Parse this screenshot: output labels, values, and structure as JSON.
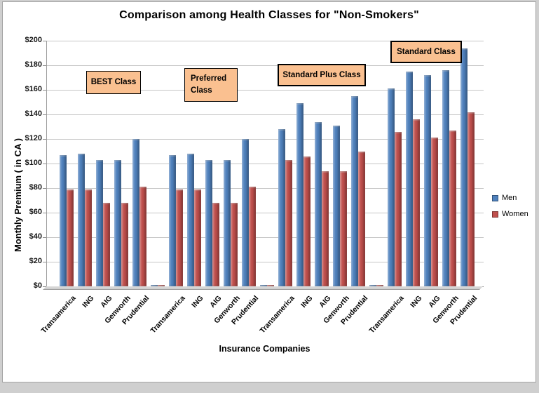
{
  "chart_data": {
    "type": "bar",
    "title": "Comparison among Health Classes for \"Non-Smokers\"",
    "xlabel": "Insurance Companies",
    "ylabel": "Monthly Premium ( in CA )",
    "ylim": [
      0,
      200
    ],
    "ytick_step": 20,
    "ytick_labels": [
      "$0",
      "$20",
      "$40",
      "$60",
      "$80",
      "$100",
      "$120",
      "$140",
      "$160",
      "$180",
      "$200"
    ],
    "grid": true,
    "companies": [
      "Transamerica",
      "ING",
      "AIG",
      "Genworth",
      "Prudential"
    ],
    "series_colors": {
      "men": "#4f81bd",
      "women": "#c0504d"
    },
    "legend": {
      "position": "right",
      "entries": [
        {
          "label": "Men",
          "color": "#4f81bd"
        },
        {
          "label": "Women",
          "color": "#c0504d"
        }
      ]
    },
    "groups": [
      {
        "class_label": "BEST Class",
        "men": [
          107,
          108,
          103,
          103,
          120
        ],
        "women": [
          79,
          79,
          68,
          68,
          81
        ]
      },
      {
        "class_label": "Preferred Class",
        "men": [
          107,
          108,
          103,
          103,
          120
        ],
        "women": [
          79,
          79,
          68,
          68,
          81
        ]
      },
      {
        "class_label": "Standard Plus Class",
        "men": [
          128,
          149,
          134,
          131,
          155
        ],
        "women": [
          103,
          106,
          94,
          94,
          110
        ]
      },
      {
        "class_label": "Standard Class",
        "men": [
          161,
          175,
          172,
          176,
          194
        ],
        "women": [
          126,
          136,
          121,
          127,
          142
        ]
      }
    ],
    "group_separator_bars": {
      "men": 1,
      "women": 1
    }
  }
}
